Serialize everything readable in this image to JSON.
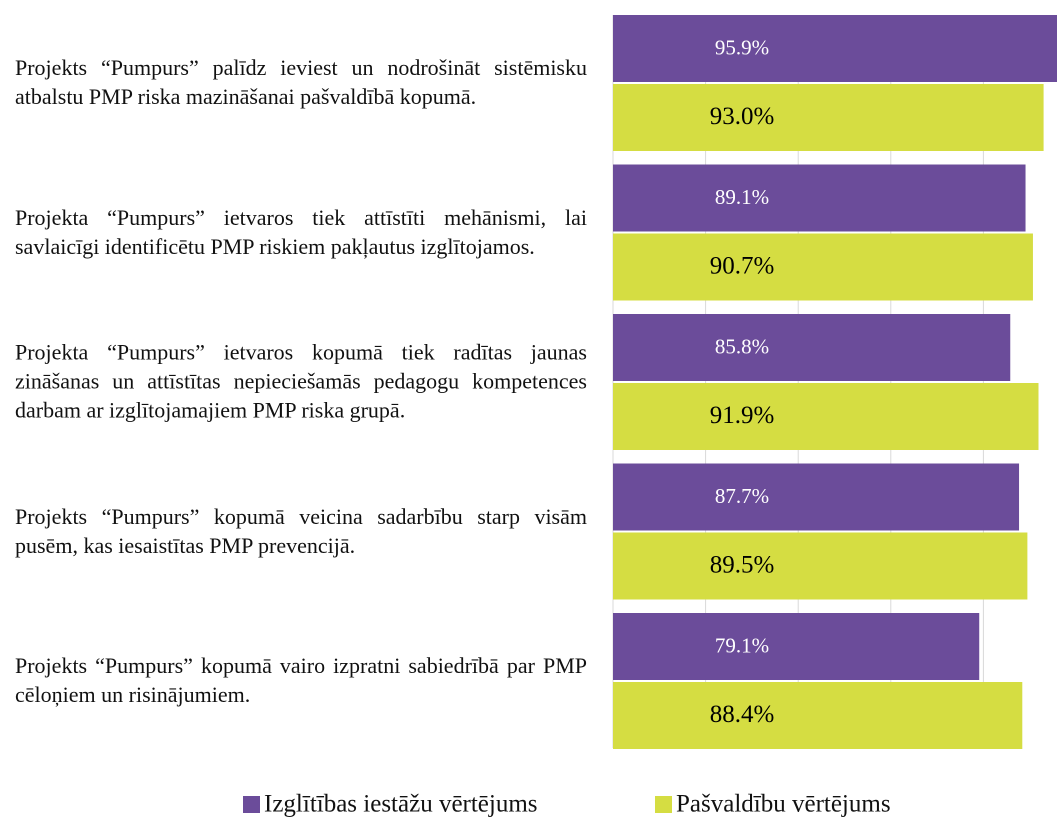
{
  "chart_data": {
    "type": "hbar",
    "categories": [
      "Projekts “Pumpurs” palīdz ieviest un nodrošināt sistēmisku atbalstu PMP riska mazināšanai pašvaldībā kopumā.",
      "Projekta “Pumpurs” ietvaros tiek attīstīti mehānismi, lai savlaicīgi identificētu PMP riskiem pakļautus izglītojamos.",
      "Projekta “Pumpurs” ietvaros kopumā tiek radītas jaunas zināšanas un attīstītas nepieciešamās pedagogu kompetences darbam ar izglītojamajiem PMP riska grupā.",
      "Projekts “Pumpurs” kopumā veicina sadarbību starp visām pusēm, kas iesaistītas PMP prevencijā.",
      "Projekts “Pumpurs” kopumā vairo izpratni sabiedrībā par PMP cēloņiem un risinājumiem."
    ],
    "series": [
      {
        "name": "Izglītības iestāžu vērtējums",
        "color": "#6b4c9a",
        "values": [
          95.9,
          89.1,
          85.8,
          87.7,
          79.1
        ],
        "value_labels": [
          "95.9%",
          "89.1%",
          "85.8%",
          "87.7%",
          "79.1%"
        ]
      },
      {
        "name": "Pašvaldību vērtējums",
        "color": "#d5dd42",
        "values": [
          93.0,
          90.7,
          91.9,
          89.5,
          88.4
        ],
        "value_labels": [
          "93.0%",
          "90.7%",
          "91.9%",
          "89.5%",
          "88.4%"
        ]
      }
    ],
    "xlim": [
      0,
      100
    ],
    "xticks": [
      0,
      20,
      40,
      60,
      80,
      100
    ],
    "grid": true,
    "legend": "bottom"
  }
}
